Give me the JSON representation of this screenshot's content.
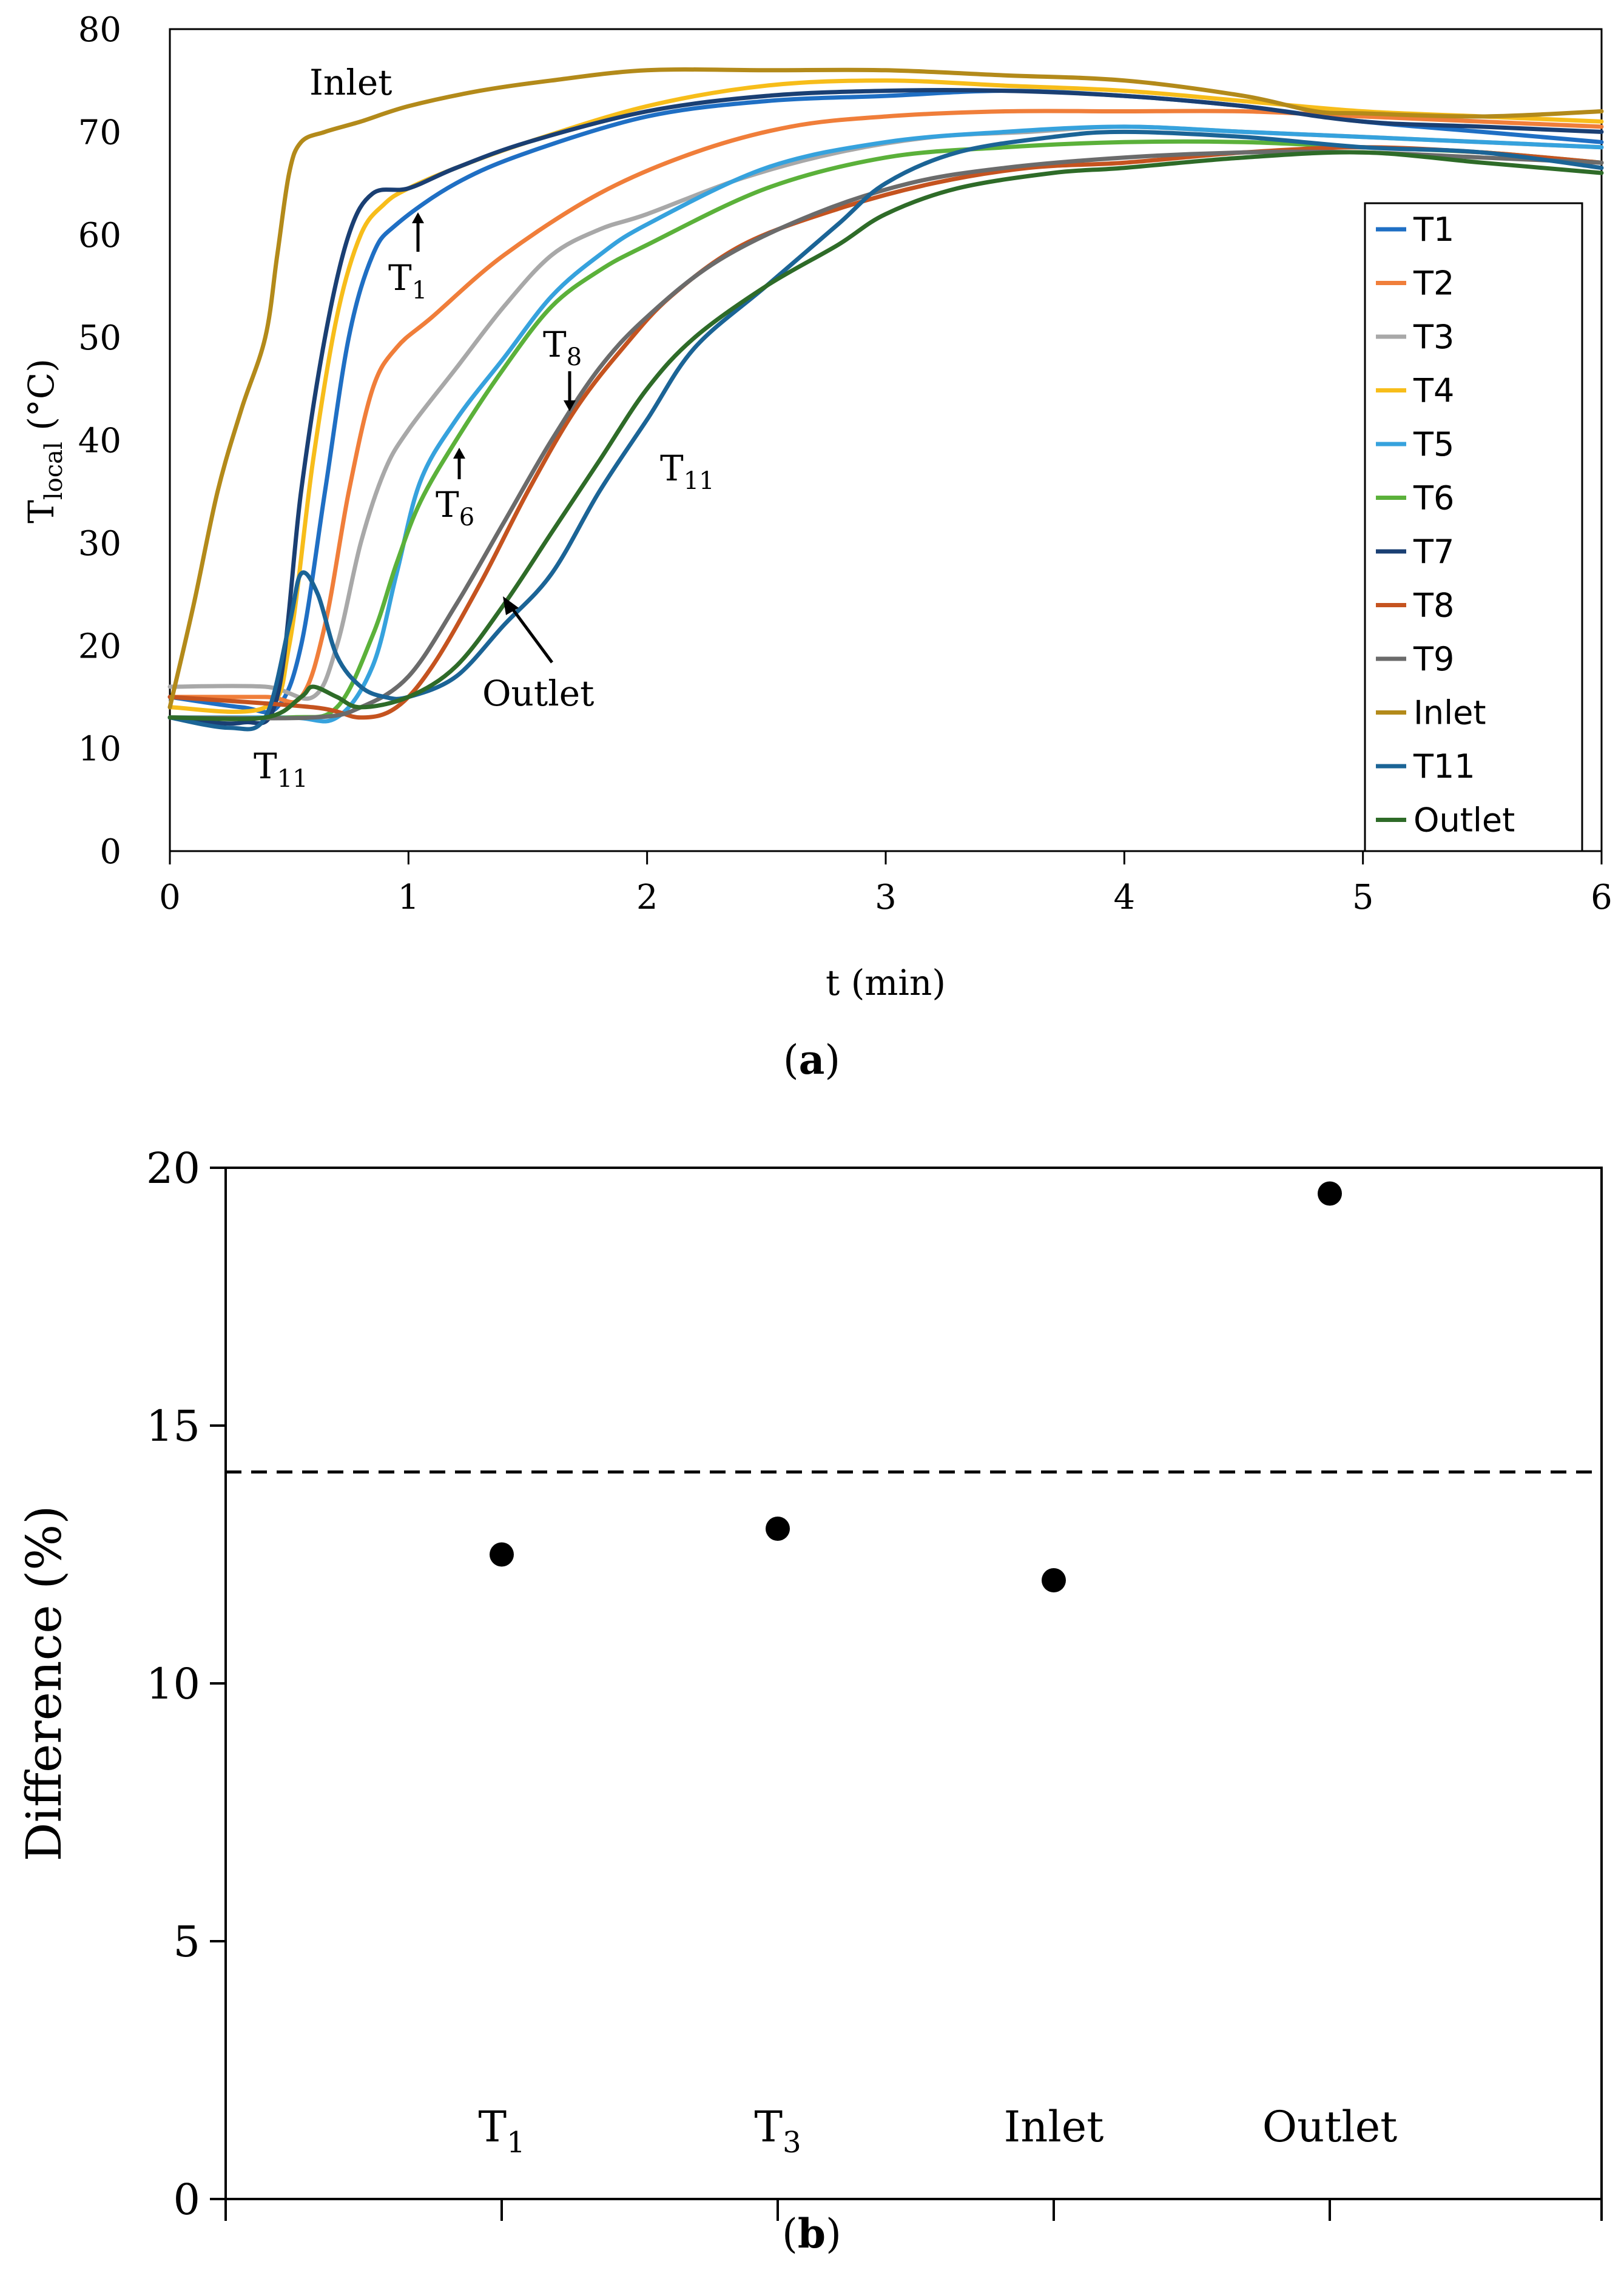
{
  "chart_data": [
    {
      "type": "line",
      "panel_label": "a",
      "xlabel": "t (min)",
      "ylabel": {
        "main": "T",
        "sub": "local",
        "unit": " (°C)"
      },
      "xlim": [
        0,
        6
      ],
      "ylim": [
        0,
        80
      ],
      "xticks": [
        "0",
        "1",
        "2",
        "3",
        "4",
        "5",
        "6"
      ],
      "yticks": [
        "0",
        "10",
        "20",
        "30",
        "40",
        "50",
        "60",
        "70",
        "80"
      ],
      "legend_position": "right",
      "series": [
        {
          "name": "T1",
          "color": "#1f6fc4",
          "points": [
            [
              0,
              15
            ],
            [
              0.3,
              14
            ],
            [
              0.45,
              14
            ],
            [
              0.55,
              20
            ],
            [
              0.65,
              35
            ],
            [
              0.75,
              50
            ],
            [
              0.85,
              58
            ],
            [
              0.95,
              61
            ],
            [
              1.2,
              65
            ],
            [
              1.5,
              68
            ],
            [
              2,
              71.5
            ],
            [
              2.5,
              73
            ],
            [
              3,
              73.5
            ],
            [
              3.5,
              74
            ],
            [
              4,
              73.5
            ],
            [
              4.5,
              72.5
            ],
            [
              5,
              71
            ],
            [
              5.5,
              70
            ],
            [
              6,
              69
            ]
          ]
        },
        {
          "name": "T2",
          "color": "#f07e3a",
          "points": [
            [
              0,
              15
            ],
            [
              0.4,
              15
            ],
            [
              0.55,
              15
            ],
            [
              0.65,
              22
            ],
            [
              0.75,
              35
            ],
            [
              0.85,
              45
            ],
            [
              0.95,
              49
            ],
            [
              1.1,
              52
            ],
            [
              1.4,
              58
            ],
            [
              1.8,
              64
            ],
            [
              2.2,
              68
            ],
            [
              2.6,
              70.5
            ],
            [
              3,
              71.5
            ],
            [
              3.5,
              72
            ],
            [
              4,
              72
            ],
            [
              4.5,
              72
            ],
            [
              5,
              71.5
            ],
            [
              5.5,
              71
            ],
            [
              6,
              70.5
            ]
          ]
        },
        {
          "name": "T3",
          "color": "#a8a8a8",
          "points": [
            [
              0,
              16
            ],
            [
              0.4,
              16
            ],
            [
              0.6,
              15
            ],
            [
              0.7,
              20
            ],
            [
              0.8,
              30
            ],
            [
              0.9,
              37
            ],
            [
              1,
              41
            ],
            [
              1.2,
              47
            ],
            [
              1.4,
              53
            ],
            [
              1.6,
              58
            ],
            [
              1.8,
              60.5
            ],
            [
              2,
              62
            ],
            [
              2.4,
              65.5
            ],
            [
              2.8,
              68
            ],
            [
              3.2,
              69.5
            ],
            [
              3.6,
              70
            ],
            [
              4,
              70.5
            ],
            [
              4.5,
              70
            ],
            [
              5,
              69.5
            ],
            [
              5.5,
              69
            ],
            [
              6,
              68.5
            ]
          ]
        },
        {
          "name": "T4",
          "color": "#f7bd1a",
          "points": [
            [
              0,
              14
            ],
            [
              0.4,
              14
            ],
            [
              0.5,
              20
            ],
            [
              0.6,
              38
            ],
            [
              0.7,
              52
            ],
            [
              0.8,
              60
            ],
            [
              0.9,
              63
            ],
            [
              1,
              64.5
            ],
            [
              1.2,
              66.5
            ],
            [
              1.5,
              69
            ],
            [
              2,
              72.5
            ],
            [
              2.5,
              74.5
            ],
            [
              3,
              75
            ],
            [
              3.5,
              74.5
            ],
            [
              4,
              74
            ],
            [
              4.5,
              73
            ],
            [
              5,
              72
            ],
            [
              5.5,
              71.5
            ],
            [
              6,
              71
            ]
          ]
        },
        {
          "name": "T5",
          "color": "#36a2dd",
          "points": [
            [
              0,
              13
            ],
            [
              0.5,
              13
            ],
            [
              0.7,
              13
            ],
            [
              0.85,
              18
            ],
            [
              0.95,
              27
            ],
            [
              1.05,
              36
            ],
            [
              1.2,
              42
            ],
            [
              1.4,
              48
            ],
            [
              1.6,
              54
            ],
            [
              1.8,
              58
            ],
            [
              2,
              61
            ],
            [
              2.5,
              66.5
            ],
            [
              3,
              69
            ],
            [
              3.5,
              70
            ],
            [
              4,
              70.5
            ],
            [
              4.5,
              70
            ],
            [
              5,
              69.5
            ],
            [
              5.5,
              69
            ],
            [
              6,
              68.5
            ]
          ]
        },
        {
          "name": "T6",
          "color": "#5bb13a",
          "points": [
            [
              0,
              13
            ],
            [
              0.5,
              13
            ],
            [
              0.7,
              14
            ],
            [
              0.85,
              21
            ],
            [
              0.95,
              28
            ],
            [
              1.05,
              34
            ],
            [
              1.2,
              40
            ],
            [
              1.4,
              47
            ],
            [
              1.6,
              53
            ],
            [
              1.8,
              56.5
            ],
            [
              2,
              59
            ],
            [
              2.5,
              64.5
            ],
            [
              3,
              67.5
            ],
            [
              3.5,
              68.5
            ],
            [
              4,
              69
            ],
            [
              4.5,
              69
            ],
            [
              5,
              68.5
            ],
            [
              5.5,
              68
            ],
            [
              6,
              67
            ]
          ]
        },
        {
          "name": "T7",
          "color": "#1a3f73",
          "points": [
            [
              0,
              13
            ],
            [
              0.3,
              12.5
            ],
            [
              0.45,
              15
            ],
            [
              0.55,
              35
            ],
            [
              0.65,
              50
            ],
            [
              0.75,
              60
            ],
            [
              0.85,
              64
            ],
            [
              1,
              64.5
            ],
            [
              1.2,
              66.5
            ],
            [
              1.5,
              69
            ],
            [
              2,
              72
            ],
            [
              2.5,
              73.5
            ],
            [
              3,
              74
            ],
            [
              3.5,
              74
            ],
            [
              4,
              73.5
            ],
            [
              4.5,
              72.5
            ],
            [
              5,
              71
            ],
            [
              5.5,
              70.5
            ],
            [
              6,
              70
            ]
          ]
        },
        {
          "name": "T8",
          "color": "#c5531f",
          "points": [
            [
              0,
              15
            ],
            [
              0.6,
              14
            ],
            [
              0.8,
              13
            ],
            [
              0.95,
              14
            ],
            [
              1.1,
              18
            ],
            [
              1.3,
              26
            ],
            [
              1.5,
              35
            ],
            [
              1.7,
              43
            ],
            [
              1.9,
              49
            ],
            [
              2.1,
              54
            ],
            [
              2.4,
              59
            ],
            [
              2.8,
              62.5
            ],
            [
              3.2,
              65
            ],
            [
              3.6,
              66.5
            ],
            [
              4,
              67
            ],
            [
              4.5,
              68
            ],
            [
              5,
              68.5
            ],
            [
              5.5,
              68
            ],
            [
              6,
              67
            ]
          ]
        },
        {
          "name": "T9",
          "color": "#6b6b6b",
          "points": [
            [
              0,
              13
            ],
            [
              0.6,
              13
            ],
            [
              0.8,
              14
            ],
            [
              1,
              17
            ],
            [
              1.2,
              24
            ],
            [
              1.4,
              32
            ],
            [
              1.6,
              40
            ],
            [
              1.8,
              47
            ],
            [
              2,
              52
            ],
            [
              2.3,
              57.5
            ],
            [
              2.7,
              62
            ],
            [
              3.1,
              65
            ],
            [
              3.5,
              66.5
            ],
            [
              4,
              67.5
            ],
            [
              4.5,
              68
            ],
            [
              5,
              68
            ],
            [
              5.5,
              67.5
            ],
            [
              6,
              67
            ]
          ]
        },
        {
          "name": "Inlet",
          "color": "#b38a1a",
          "points": [
            [
              0,
              14
            ],
            [
              0.1,
              24
            ],
            [
              0.2,
              35
            ],
            [
              0.3,
              43
            ],
            [
              0.4,
              50
            ],
            [
              0.45,
              58
            ],
            [
              0.5,
              66
            ],
            [
              0.55,
              69
            ],
            [
              0.65,
              70
            ],
            [
              0.8,
              71
            ],
            [
              1,
              72.5
            ],
            [
              1.3,
              74
            ],
            [
              1.6,
              75
            ],
            [
              2,
              76
            ],
            [
              2.5,
              76
            ],
            [
              3,
              76
            ],
            [
              3.5,
              75.5
            ],
            [
              4,
              75
            ],
            [
              4.5,
              73.5
            ],
            [
              4.8,
              72
            ],
            [
              5,
              71.8
            ],
            [
              5.5,
              71.5
            ],
            [
              6,
              72
            ]
          ]
        },
        {
          "name": "T11",
          "color": "#1b6496",
          "points": [
            [
              0,
              13
            ],
            [
              0.25,
              12
            ],
            [
              0.4,
              13
            ],
            [
              0.5,
              22
            ],
            [
              0.55,
              27
            ],
            [
              0.62,
              25
            ],
            [
              0.7,
              19
            ],
            [
              0.8,
              16
            ],
            [
              0.9,
              15
            ],
            [
              1,
              15
            ],
            [
              1.2,
              17
            ],
            [
              1.4,
              22
            ],
            [
              1.6,
              27
            ],
            [
              1.8,
              35
            ],
            [
              2,
              42
            ],
            [
              2.2,
              49
            ],
            [
              2.5,
              55
            ],
            [
              2.8,
              61
            ],
            [
              3,
              65
            ],
            [
              3.3,
              68
            ],
            [
              3.7,
              69.5
            ],
            [
              4,
              70
            ],
            [
              4.5,
              69.5
            ],
            [
              5,
              68.5
            ],
            [
              5.5,
              68
            ],
            [
              6,
              66.5
            ]
          ]
        },
        {
          "name": "Outlet",
          "color": "#2e6b28",
          "points": [
            [
              0,
              13
            ],
            [
              0.4,
              13
            ],
            [
              0.55,
              15
            ],
            [
              0.6,
              16
            ],
            [
              0.7,
              15
            ],
            [
              0.8,
              14
            ],
            [
              1,
              15
            ],
            [
              1.2,
              18
            ],
            [
              1.4,
              24
            ],
            [
              1.6,
              31
            ],
            [
              1.8,
              38
            ],
            [
              2,
              45
            ],
            [
              2.2,
              50
            ],
            [
              2.5,
              55
            ],
            [
              2.8,
              59
            ],
            [
              3,
              62
            ],
            [
              3.3,
              64.5
            ],
            [
              3.7,
              66
            ],
            [
              4,
              66.5
            ],
            [
              4.5,
              67.5
            ],
            [
              5,
              68
            ],
            [
              5.5,
              67
            ],
            [
              6,
              66
            ]
          ]
        }
      ],
      "annotations": [
        {
          "text": "Inlet"
        },
        {
          "text": "T",
          "sub": "1"
        },
        {
          "text": "T",
          "sub": "8"
        },
        {
          "text": "T",
          "sub": "6"
        },
        {
          "text": "T",
          "sub": "11"
        },
        {
          "text": "Outlet"
        },
        {
          "text": "T",
          "sub": "11"
        }
      ]
    },
    {
      "type": "scatter",
      "panel_label": "b",
      "ylabel": "Difference (%)",
      "xlabel": "",
      "ylim": [
        0,
        20
      ],
      "yticks": [
        "0",
        "5",
        "10",
        "15",
        "20"
      ],
      "categories": [
        {
          "text": "T",
          "sub": "1"
        },
        {
          "text": "T",
          "sub": "3"
        },
        {
          "text": "Inlet",
          "sub": ""
        },
        {
          "text": "Outlet",
          "sub": ""
        }
      ],
      "values": [
        12.5,
        13,
        12,
        19.5
      ],
      "reference_line": 14.1,
      "marker_color": "#000000"
    }
  ]
}
